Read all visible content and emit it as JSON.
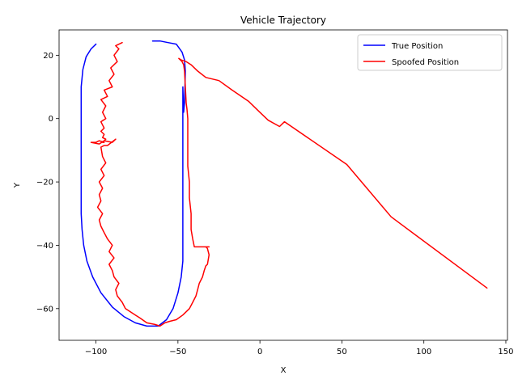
{
  "chart_data": {
    "type": "line",
    "title": "Vehicle Trajectory",
    "xlabel": "X",
    "ylabel": "Y",
    "xlim": [
      -122.5,
      151
    ],
    "ylim": [
      -70,
      28
    ],
    "x_ticks": [
      -100,
      -50,
      0,
      50,
      100,
      150
    ],
    "y_ticks": [
      -60,
      -40,
      -20,
      0,
      20
    ],
    "x_tick_labels": [
      "−100",
      "−50",
      "0",
      "50",
      "100",
      "150"
    ],
    "y_tick_labels": [
      "−60",
      "−40",
      "−20",
      "0",
      "20"
    ],
    "grid": false,
    "legend_position": "top-right",
    "series": [
      {
        "name": "True Position",
        "color": "#0000ff",
        "x": [
          -100,
          -103,
          -106,
          -108,
          -109,
          -109,
          -109,
          -109,
          -109,
          -109,
          -108.5,
          -107.5,
          -105.5,
          -102,
          -97,
          -90,
          -83,
          -76,
          -69,
          -62,
          -57,
          -53,
          -50,
          -48,
          -47,
          -47,
          -47,
          -47,
          -47,
          -47,
          -47,
          -47,
          -47,
          -46.5,
          -46,
          -45.5,
          -46,
          -47.5,
          -51,
          -56,
          -61,
          -65.5
        ],
        "y": [
          23.5,
          22,
          19.5,
          15.5,
          10,
          5,
          0,
          -10,
          -20,
          -30,
          -35,
          -40,
          -45,
          -50,
          -55,
          -59.5,
          -62.5,
          -64.5,
          -65.5,
          -65.5,
          -63.5,
          -60,
          -55,
          -50,
          -45,
          -40,
          -30,
          -20,
          -10,
          -5,
          0,
          5,
          10,
          2,
          5,
          15,
          18.5,
          21,
          23.5,
          24,
          24.5,
          24.5
        ]
      },
      {
        "name": "Spoofed Position",
        "color": "#ff0000",
        "x": [
          -84,
          -88,
          -86,
          -89,
          -87,
          -91,
          -89,
          -92,
          -90,
          -95,
          -93,
          -97,
          -94,
          -96,
          -94,
          -97,
          -95,
          -97,
          -95,
          -96,
          -94,
          -96,
          -95,
          -98,
          -100,
          -103,
          -98,
          -95,
          -90,
          -88,
          -93,
          -95,
          -97,
          -96,
          -94,
          -97,
          -95,
          -98,
          -96,
          -98,
          -97,
          -99,
          -96,
          -98,
          -97,
          -95,
          -93,
          -90,
          -92,
          -89,
          -92,
          -90,
          -89,
          -86,
          -88,
          -87,
          -84,
          -82,
          -79,
          -76,
          -73,
          -69,
          -64,
          -61,
          -58,
          -55,
          -51,
          -47,
          -43,
          -41,
          -39,
          -38,
          -37,
          -35,
          -34,
          -33,
          -32,
          -31,
          -32,
          -33,
          -31,
          -40,
          -41,
          -42,
          -42,
          -43,
          -43,
          -44,
          -44,
          -44,
          -44,
          -44.5,
          -45,
          -45.5,
          -46,
          -46.5,
          -47.5,
          -48.5,
          -49.5,
          -48,
          -45,
          -42,
          -38,
          -33,
          -25,
          -17,
          -7,
          0,
          5,
          12,
          15,
          53,
          80,
          138.5
        ],
        "y": [
          24,
          23,
          22,
          20,
          18,
          16,
          14,
          12,
          10,
          9,
          7,
          6,
          4,
          2,
          0,
          -1,
          -3,
          -4,
          -5,
          -6,
          -6.5,
          -7.5,
          -7.5,
          -7,
          -7.5,
          -7.5,
          -8,
          -7,
          -7.5,
          -6.5,
          -8.5,
          -8.5,
          -9,
          -12,
          -14,
          -16,
          -18,
          -20,
          -22,
          -24,
          -26,
          -28,
          -30,
          -32,
          -34,
          -36,
          -38,
          -40,
          -42,
          -44,
          -46,
          -48,
          -50,
          -52,
          -54,
          -56,
          -58,
          -60,
          -61,
          -62,
          -63,
          -64.5,
          -65,
          -65.5,
          -64.5,
          -64,
          -63.5,
          -62,
          -60,
          -58,
          -56,
          -54,
          -52,
          -50,
          -48,
          -46.5,
          -46,
          -43,
          -41,
          -40.5,
          -40.5,
          -40.5,
          -38,
          -35,
          -30,
          -25,
          -20,
          -15,
          -10,
          -5,
          0,
          3,
          5,
          10,
          15,
          17,
          18,
          18.5,
          19,
          18.5,
          18,
          17,
          15,
          13,
          12,
          9,
          5.5,
          2,
          -0.5,
          -2.5,
          -1,
          -14.5,
          -31,
          -53.5
        ]
      }
    ]
  }
}
